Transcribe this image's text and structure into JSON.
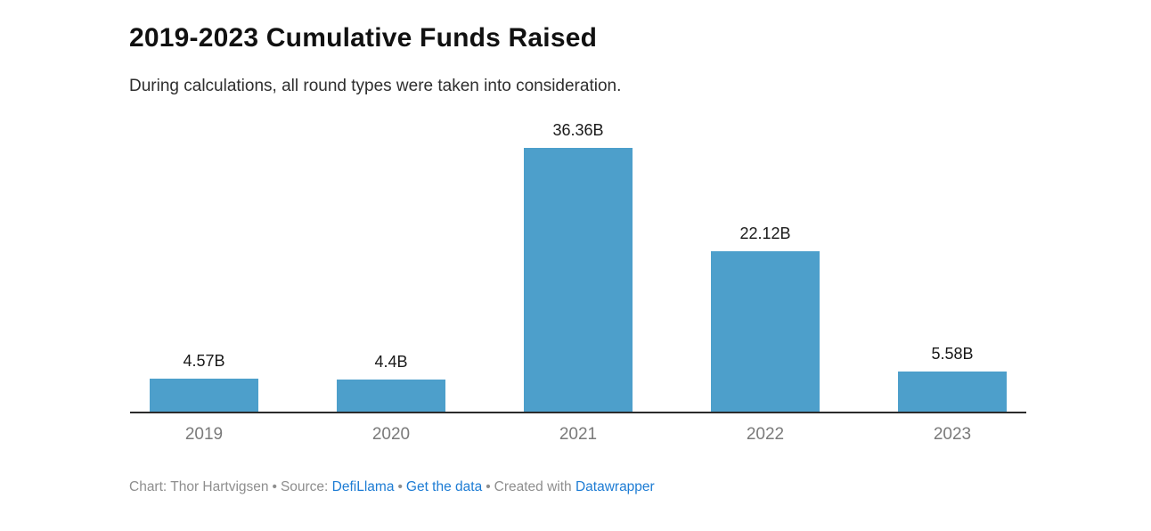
{
  "header": {
    "title": "2019-2023 Cumulative Funds Raised",
    "subtitle": "During calculations, all round types were taken into consideration."
  },
  "chart_data": {
    "type": "bar",
    "categories": [
      "2019",
      "2020",
      "2021",
      "2022",
      "2023"
    ],
    "values": [
      4.57,
      4.4,
      36.36,
      22.12,
      5.58
    ],
    "value_labels": [
      "4.57B",
      "4.4B",
      "36.36B",
      "22.12B",
      "5.58B"
    ],
    "unit": "B (billions USD)",
    "title": "2019-2023 Cumulative Funds Raised",
    "subtitle": "During calculations, all round types were taken into consideration.",
    "xlabel": "",
    "ylabel": "",
    "ylim": [
      0,
      36.36
    ],
    "grid": false,
    "legend": false,
    "bar_color": "#4d9fcb",
    "axis_color": "#2b2b2b"
  },
  "footer": {
    "byline": "Chart: Thor Hartvigsen",
    "separator": "•",
    "source_label": "Source:",
    "source_link_label": "DefiLlama",
    "get_data_link_label": "Get the data",
    "created_with_label": "Created with",
    "tool_link_label": "Datawrapper",
    "link_color": "#1d7cd4"
  }
}
